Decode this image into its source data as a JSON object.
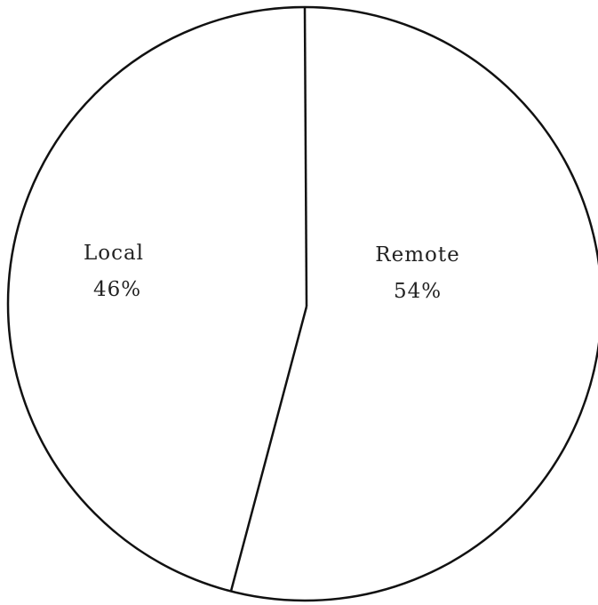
{
  "chart_data": {
    "type": "pie",
    "slices": [
      {
        "label": "Local",
        "value_label": "46%",
        "value": 46
      },
      {
        "label": "Remote",
        "value_label": "54%",
        "value": 54
      }
    ],
    "start": "12 o'clock",
    "direction": "clockwise, Remote first",
    "colors": {
      "fill": "#ffffff",
      "stroke": "#111111"
    }
  }
}
